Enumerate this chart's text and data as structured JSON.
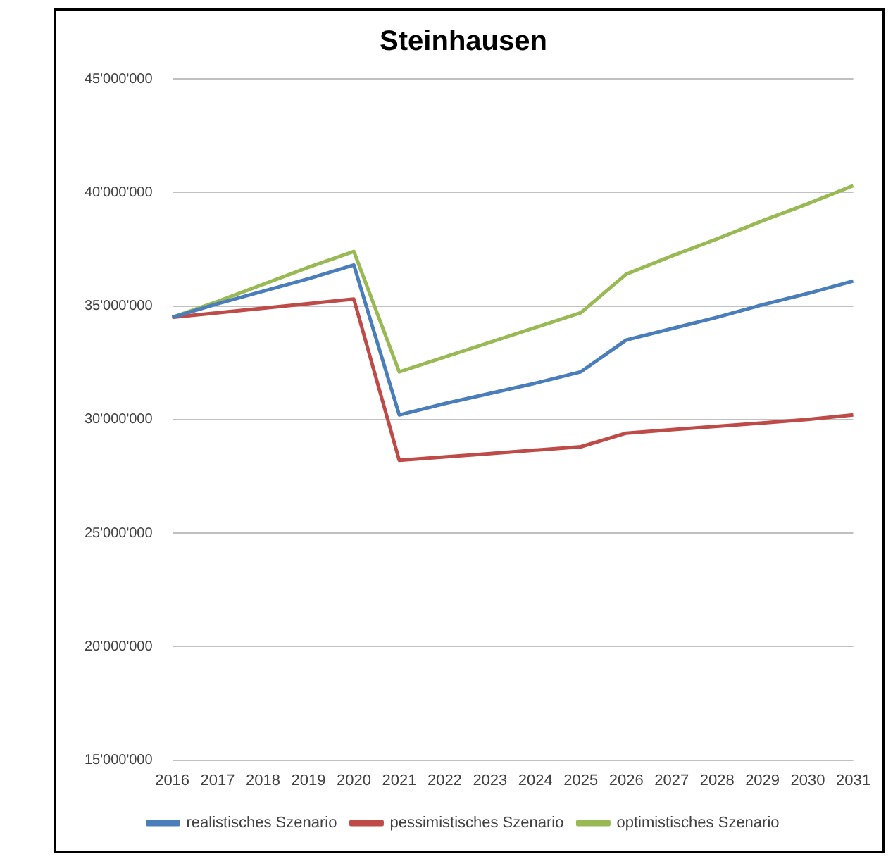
{
  "chart_data": {
    "type": "line",
    "title": "Steinhausen",
    "categories": [
      "2016",
      "2017",
      "2018",
      "2019",
      "2020",
      "2021",
      "2022",
      "2023",
      "2024",
      "2025",
      "2026",
      "2027",
      "2028",
      "2029",
      "2030",
      "2031"
    ],
    "series": [
      {
        "name": "realistisches Szenario",
        "color": "#4a7ebb",
        "values": [
          34500000,
          35100000,
          35650000,
          36200000,
          36800000,
          30200000,
          30700000,
          31150000,
          31600000,
          32100000,
          33500000,
          34000000,
          34500000,
          35050000,
          35550000,
          36100000
        ]
      },
      {
        "name": "pessimistisches Szenario",
        "color": "#be4b48",
        "values": [
          34500000,
          34700000,
          34900000,
          35100000,
          35300000,
          28200000,
          28350000,
          28500000,
          28650000,
          28800000,
          29400000,
          29550000,
          29700000,
          29850000,
          30000000,
          30200000
        ]
      },
      {
        "name": "optimistisches Szenario",
        "color": "#98b954",
        "values": [
          34500000,
          35200000,
          35950000,
          36700000,
          37400000,
          32100000,
          32750000,
          33400000,
          34050000,
          34700000,
          36400000,
          37200000,
          37950000,
          38750000,
          39500000,
          40300000
        ]
      }
    ],
    "ylim": [
      15000000,
      45000000
    ],
    "yticks": [
      {
        "value": 15000000,
        "label": "15'000'000"
      },
      {
        "value": 20000000,
        "label": "20'000'000"
      },
      {
        "value": 25000000,
        "label": "25'000'000"
      },
      {
        "value": 30000000,
        "label": "30'000'000"
      },
      {
        "value": 35000000,
        "label": "35'000'000"
      },
      {
        "value": 40000000,
        "label": "40'000'000"
      },
      {
        "value": 45000000,
        "label": "45'000'000"
      }
    ],
    "grid": "y",
    "legend": "bottom",
    "marker": "none",
    "line_style": "solid"
  }
}
